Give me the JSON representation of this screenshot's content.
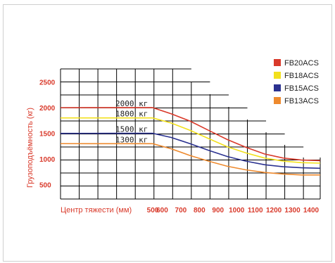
{
  "chart_data": {
    "type": "line",
    "xlabel": "Центр тяжести (мм)",
    "ylabel": "Грузоподъёмность (кг)",
    "xlim": [
      0,
      1400
    ],
    "ylim": [
      300,
      2800
    ],
    "x_ticks": [
      {
        "value": 500,
        "label": "500"
      },
      {
        "value": 600,
        "label": "600"
      },
      {
        "value": 700,
        "label": "700"
      },
      {
        "value": 800,
        "label": "800"
      },
      {
        "value": 900,
        "label": "900"
      },
      {
        "value": 1000,
        "label": "1000"
      },
      {
        "value": 1100,
        "label": "1100"
      },
      {
        "value": 1200,
        "label": "1200"
      },
      {
        "value": 1300,
        "label": "1300"
      },
      {
        "value": 1400,
        "label": "1400"
      }
    ],
    "y_ticks": [
      {
        "value": 500,
        "label": "500"
      },
      {
        "value": 1000,
        "label": "1000"
      },
      {
        "value": 1500,
        "label": "1500"
      },
      {
        "value": 2000,
        "label": "2000"
      },
      {
        "value": 2500,
        "label": "2500"
      }
    ],
    "grid": true,
    "legend_position": "top-right",
    "series": [
      {
        "name": "FB20ACS",
        "color": "#d93a2b",
        "curve_label": "2000 кг",
        "x": [
          0,
          300,
          500,
          600,
          700,
          800,
          900,
          1000,
          1100,
          1200,
          1300,
          1400
        ],
        "y": [
          2000,
          2000,
          2000,
          1880,
          1740,
          1560,
          1380,
          1230,
          1100,
          1020,
          980,
          970
        ]
      },
      {
        "name": "FB18ACS",
        "color": "#f2e01d",
        "curve_label": "1800 кг",
        "x": [
          0,
          300,
          500,
          600,
          700,
          800,
          900,
          1000,
          1100,
          1200,
          1300,
          1400
        ],
        "y": [
          1800,
          1800,
          1800,
          1700,
          1560,
          1400,
          1240,
          1120,
          1020,
          960,
          930,
          920
        ]
      },
      {
        "name": "FB15ACS",
        "color": "#2b3290",
        "curve_label": "1500 кг",
        "x": [
          0,
          300,
          500,
          600,
          700,
          800,
          900,
          1000,
          1100,
          1200,
          1300,
          1400
        ],
        "y": [
          1500,
          1500,
          1500,
          1420,
          1300,
          1170,
          1050,
          960,
          890,
          850,
          830,
          820
        ]
      },
      {
        "name": "FB13ACS",
        "color": "#ee8a2e",
        "curve_label": "1300 кг",
        "x": [
          0,
          300,
          500,
          600,
          700,
          800,
          900,
          1000,
          1100,
          1200,
          1300,
          1400
        ],
        "y": [
          1300,
          1300,
          1300,
          1200,
          1070,
          960,
          860,
          790,
          740,
          710,
          690,
          690
        ]
      }
    ]
  }
}
